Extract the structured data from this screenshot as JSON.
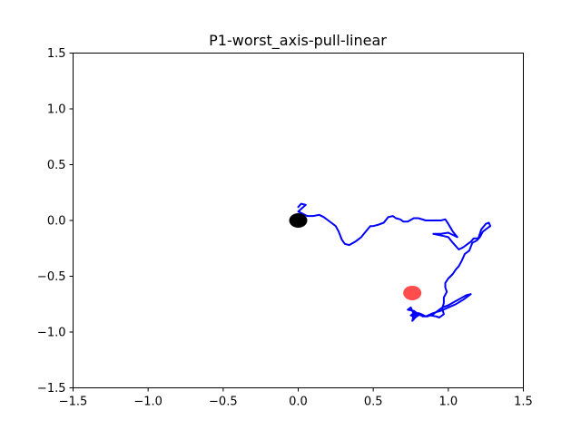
{
  "chart_data": {
    "type": "line",
    "title": "P1-worst_axis-pull-linear",
    "xlabel": "",
    "ylabel": "",
    "xlim": [
      -1.5,
      1.5
    ],
    "ylim": [
      -1.5,
      1.5
    ],
    "x_ticks": [
      -1.5,
      -1.0,
      -0.5,
      0.0,
      0.5,
      1.0,
      1.5
    ],
    "x_tick_labels": [
      "−1.5",
      "−1.0",
      "−0.5",
      "0.0",
      "0.5",
      "1.0",
      "1.5"
    ],
    "y_ticks": [
      1.5,
      1.0,
      0.5,
      0.0,
      -0.5,
      -1.0,
      -1.5
    ],
    "y_tick_labels": [
      "1.5",
      "1.0",
      "0.5",
      "0.0",
      "−0.5",
      "−1.0",
      "−1.5"
    ],
    "grid": false,
    "series": [
      {
        "color": "#0000ff",
        "x": [
          0.0,
          0.02,
          0.05,
          0.0,
          0.03,
          0.06,
          0.1,
          0.14,
          0.17,
          0.2,
          0.22,
          0.25,
          0.27,
          0.29,
          0.31,
          0.34,
          0.38,
          0.42,
          0.45,
          0.48,
          0.5,
          0.53,
          0.57,
          0.6,
          0.63,
          0.65,
          0.68,
          0.7,
          0.73,
          0.77,
          0.8,
          0.85,
          0.9,
          0.95,
          0.98,
          1.0,
          1.03,
          1.06,
          1.0,
          0.95,
          0.9,
          0.97,
          1.0,
          1.03,
          1.07,
          1.1,
          1.13,
          1.15,
          1.17,
          1.2,
          1.22,
          1.25,
          1.27,
          1.28,
          1.26,
          1.23,
          1.21,
          1.19,
          1.16,
          1.14,
          1.11,
          1.09,
          1.07,
          1.05,
          1.03,
          1.0,
          0.98,
          0.98,
          0.99,
          0.97,
          0.97,
          0.96,
          0.97,
          0.94,
          0.92,
          0.88,
          0.84,
          0.82,
          0.8,
          0.78,
          0.76,
          0.77,
          0.75,
          0.73,
          0.77,
          0.8,
          0.78,
          0.75,
          0.79,
          0.83,
          0.86,
          0.9,
          0.93,
          0.96,
          1.0,
          1.04,
          1.08,
          1.12,
          1.15,
          1.1,
          1.05,
          1.0,
          0.95,
          0.9,
          0.85,
          0.82,
          0.8,
          0.78,
          0.76,
          0.78
        ],
        "y": [
          0.12,
          0.15,
          0.14,
          0.08,
          0.06,
          0.04,
          0.04,
          0.05,
          0.03,
          0.0,
          -0.02,
          -0.05,
          -0.1,
          -0.17,
          -0.21,
          -0.22,
          -0.19,
          -0.15,
          -0.1,
          -0.05,
          -0.05,
          -0.04,
          -0.02,
          0.03,
          0.04,
          0.02,
          0.01,
          -0.01,
          -0.01,
          0.02,
          0.02,
          0.0,
          0.0,
          0.0,
          0.01,
          -0.03,
          -0.1,
          -0.15,
          -0.11,
          -0.12,
          -0.12,
          -0.14,
          -0.15,
          -0.2,
          -0.26,
          -0.24,
          -0.21,
          -0.19,
          -0.16,
          -0.16,
          -0.08,
          -0.03,
          -0.02,
          -0.05,
          -0.07,
          -0.1,
          -0.15,
          -0.18,
          -0.2,
          -0.27,
          -0.3,
          -0.36,
          -0.41,
          -0.44,
          -0.48,
          -0.52,
          -0.56,
          -0.6,
          -0.64,
          -0.69,
          -0.74,
          -0.79,
          -0.84,
          -0.87,
          -0.86,
          -0.85,
          -0.86,
          -0.84,
          -0.85,
          -0.87,
          -0.9,
          -0.84,
          -0.78,
          -0.8,
          -0.81,
          -0.84,
          -0.87,
          -0.85,
          -0.83,
          -0.86,
          -0.86,
          -0.84,
          -0.81,
          -0.78,
          -0.76,
          -0.73,
          -0.7,
          -0.67,
          -0.66,
          -0.71,
          -0.75,
          -0.78,
          -0.81,
          -0.83,
          -0.86,
          -0.84,
          -0.83,
          -0.85,
          -0.84,
          -0.82
        ]
      }
    ],
    "markers": [
      {
        "color": "#000000",
        "alpha": 1.0,
        "x": 0.0,
        "y": 0.0
      },
      {
        "color": "#ff0000",
        "alpha": 0.7,
        "x": 0.76,
        "y": -0.65
      }
    ]
  }
}
